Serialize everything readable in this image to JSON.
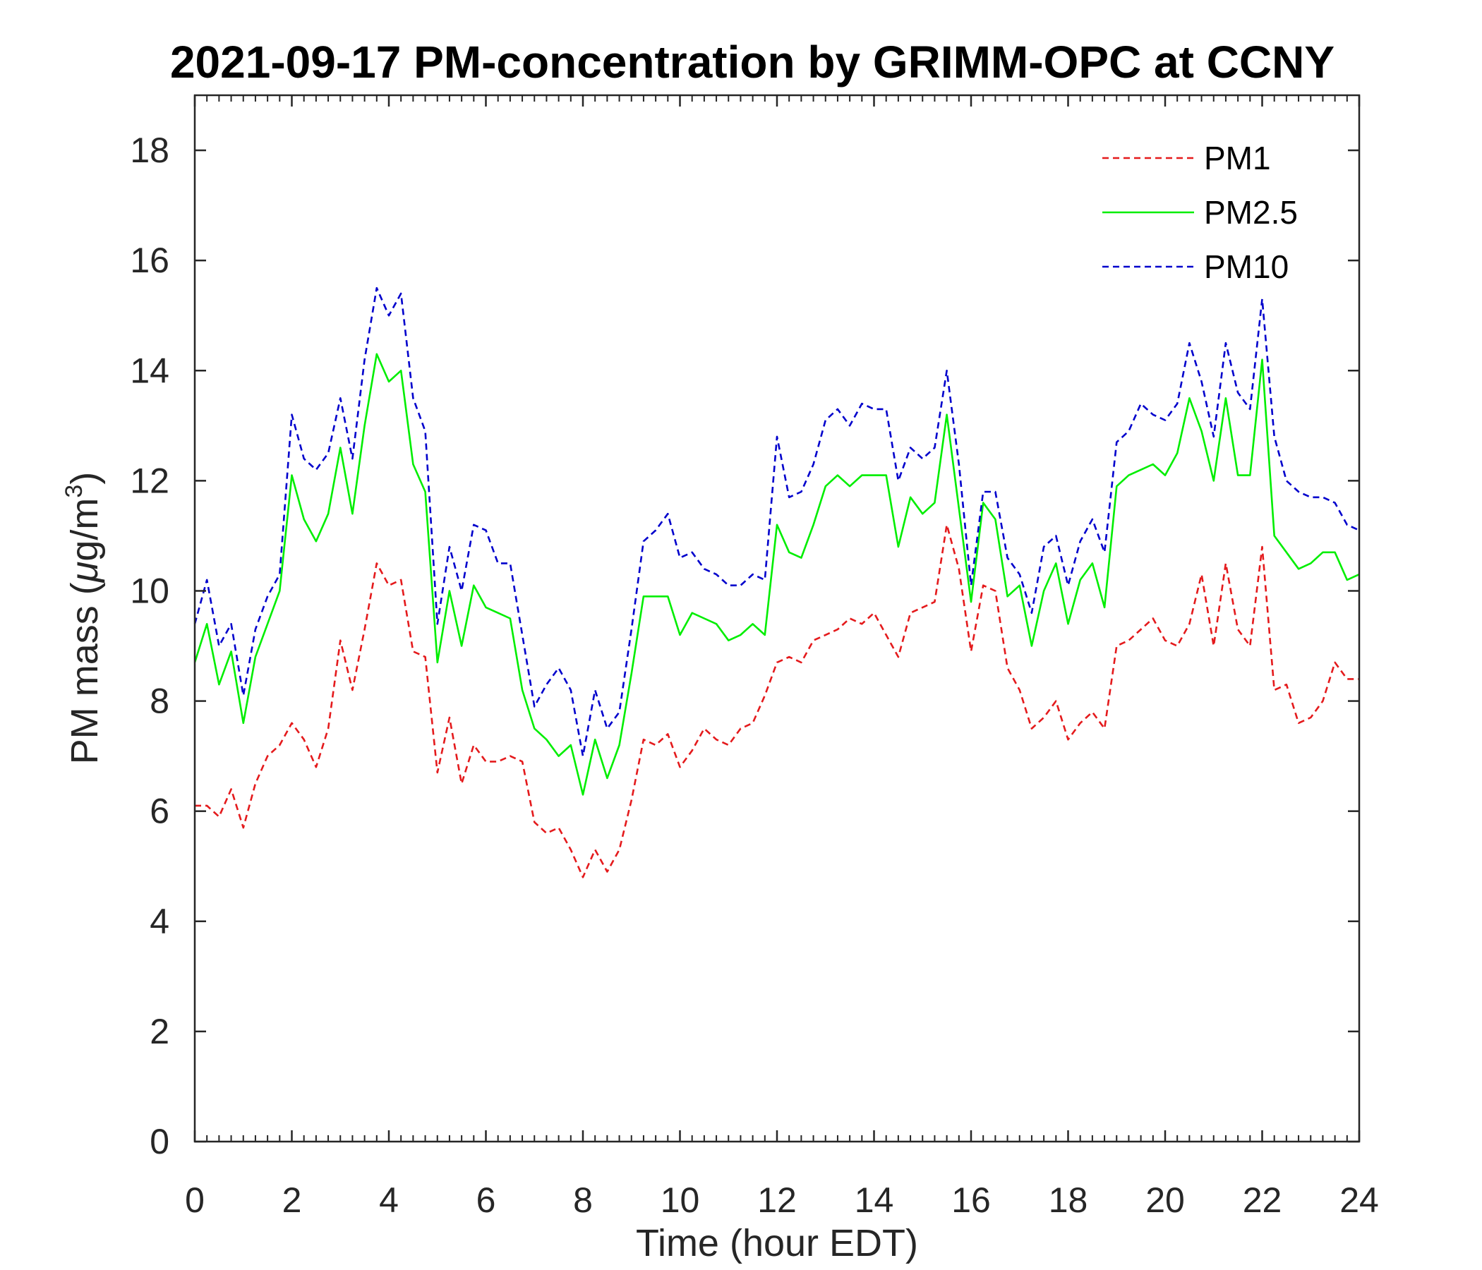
{
  "chart_data": {
    "type": "line",
    "title": "2021-09-17 PM-concentration by GRIMM-OPC at CCNY",
    "xlabel": "Time (hour EDT)",
    "ylabel_main": "PM mass (",
    "ylabel_mu": "μ",
    "ylabel_unit": "g/m",
    "ylabel_sup": "3",
    "ylabel_close": ")",
    "xlim": [
      0,
      24
    ],
    "ylim": [
      0,
      19
    ],
    "xticks": [
      0,
      2,
      4,
      6,
      8,
      10,
      12,
      14,
      16,
      18,
      20,
      22,
      24
    ],
    "yticks": [
      0,
      2,
      4,
      6,
      8,
      10,
      12,
      14,
      16,
      18
    ],
    "xtick_labels": [
      "0",
      "2",
      "4",
      "6",
      "8",
      "10",
      "12",
      "14",
      "16",
      "18",
      "20",
      "22",
      "24"
    ],
    "ytick_labels": [
      "0",
      "2",
      "4",
      "6",
      "8",
      "10",
      "12",
      "14",
      "16",
      "18"
    ],
    "legend_position": "top-right",
    "x": [
      0,
      0.25,
      0.5,
      0.75,
      1,
      1.25,
      1.5,
      1.75,
      2,
      2.25,
      2.5,
      2.75,
      3,
      3.25,
      3.5,
      3.75,
      4,
      4.25,
      4.5,
      4.75,
      5,
      5.25,
      5.5,
      5.75,
      6,
      6.25,
      6.5,
      6.75,
      7,
      7.25,
      7.5,
      7.75,
      8,
      8.25,
      8.5,
      8.75,
      9,
      9.25,
      9.5,
      9.75,
      10,
      10.25,
      10.5,
      10.75,
      11,
      11.25,
      11.5,
      11.75,
      12,
      12.25,
      12.5,
      12.75,
      13,
      13.25,
      13.5,
      13.75,
      14,
      14.25,
      14.5,
      14.75,
      15,
      15.25,
      15.5,
      15.75,
      16,
      16.25,
      16.5,
      16.75,
      17,
      17.25,
      17.5,
      17.75,
      18,
      18.25,
      18.5,
      18.75,
      19,
      19.25,
      19.5,
      19.75,
      20,
      20.25,
      20.5,
      20.75,
      21,
      21.25,
      21.5,
      21.75,
      22,
      22.25,
      22.5,
      22.75,
      23,
      23.25,
      23.5,
      23.75,
      24
    ],
    "series": [
      {
        "name": "PM1",
        "color": "#e41a1c",
        "dash": "dashed",
        "values": [
          6.1,
          6.1,
          5.9,
          6.4,
          5.7,
          6.5,
          7.0,
          7.2,
          7.6,
          7.3,
          6.8,
          7.5,
          9.1,
          8.2,
          9.3,
          10.5,
          10.1,
          10.2,
          8.9,
          8.8,
          6.7,
          7.7,
          6.5,
          7.2,
          6.9,
          6.9,
          7.0,
          6.9,
          5.8,
          5.6,
          5.7,
          5.3,
          4.8,
          5.3,
          4.9,
          5.3,
          6.2,
          7.3,
          7.2,
          7.4,
          6.8,
          7.1,
          7.5,
          7.3,
          7.2,
          7.5,
          7.6,
          8.1,
          8.7,
          8.8,
          8.7,
          9.1,
          9.2,
          9.3,
          9.5,
          9.4,
          9.6,
          9.2,
          8.8,
          9.6,
          9.7,
          9.8,
          11.2,
          10.4,
          8.9,
          10.1,
          10.0,
          8.6,
          8.2,
          7.5,
          7.7,
          8.0,
          7.3,
          7.6,
          7.8,
          7.5,
          9.0,
          9.1,
          9.3,
          9.5,
          9.1,
          9.0,
          9.4,
          10.3,
          9.0,
          10.5,
          9.3,
          9.0,
          10.8,
          8.2,
          8.3,
          7.6,
          7.7,
          8.0,
          8.7,
          8.4,
          8.4
        ]
      },
      {
        "name": "PM2.5",
        "color": "#00ee00",
        "dash": "solid",
        "values": [
          8.7,
          9.4,
          8.3,
          8.9,
          7.6,
          8.8,
          9.4,
          10.0,
          12.1,
          11.3,
          10.9,
          11.4,
          12.6,
          11.4,
          13.0,
          14.3,
          13.8,
          14.0,
          12.3,
          11.8,
          8.7,
          10.0,
          9.0,
          10.1,
          9.7,
          9.6,
          9.5,
          8.2,
          7.5,
          7.3,
          7.0,
          7.2,
          6.3,
          7.3,
          6.6,
          7.2,
          8.5,
          9.9,
          9.9,
          9.9,
          9.2,
          9.6,
          9.5,
          9.4,
          9.1,
          9.2,
          9.4,
          9.2,
          11.2,
          10.7,
          10.6,
          11.2,
          11.9,
          12.1,
          11.9,
          12.1,
          12.1,
          12.1,
          10.8,
          11.7,
          11.4,
          11.6,
          13.2,
          11.5,
          9.8,
          11.6,
          11.3,
          9.9,
          10.1,
          9.0,
          10.0,
          10.5,
          9.4,
          10.2,
          10.5,
          9.7,
          11.9,
          12.1,
          12.2,
          12.3,
          12.1,
          12.5,
          13.5,
          12.9,
          12.0,
          13.5,
          12.1,
          12.1,
          14.2,
          11.0,
          10.7,
          10.4,
          10.5,
          10.7,
          10.7,
          10.2,
          10.3
        ]
      },
      {
        "name": "PM10",
        "color": "#0000cc",
        "dash": "dashed",
        "values": [
          9.4,
          10.2,
          9.0,
          9.4,
          8.1,
          9.3,
          9.9,
          10.3,
          13.2,
          12.4,
          12.2,
          12.5,
          13.5,
          12.4,
          14.2,
          15.5,
          15.0,
          15.4,
          13.5,
          12.9,
          9.4,
          10.8,
          10.0,
          11.2,
          11.1,
          10.5,
          10.5,
          9.2,
          7.9,
          8.3,
          8.6,
          8.2,
          7.0,
          8.2,
          7.5,
          7.8,
          9.3,
          10.9,
          11.1,
          11.4,
          10.6,
          10.7,
          10.4,
          10.3,
          10.1,
          10.1,
          10.3,
          10.2,
          12.8,
          11.7,
          11.8,
          12.3,
          13.1,
          13.3,
          13.0,
          13.4,
          13.3,
          13.3,
          12.0,
          12.6,
          12.4,
          12.6,
          14.0,
          12.3,
          10.1,
          11.8,
          11.8,
          10.6,
          10.3,
          9.6,
          10.8,
          11.0,
          10.1,
          10.9,
          11.3,
          10.7,
          12.7,
          12.9,
          13.4,
          13.2,
          13.1,
          13.4,
          14.5,
          13.8,
          12.8,
          14.5,
          13.6,
          13.3,
          15.3,
          12.8,
          12.0,
          11.8,
          11.7,
          11.7,
          11.6,
          11.2,
          11.1
        ]
      }
    ]
  }
}
